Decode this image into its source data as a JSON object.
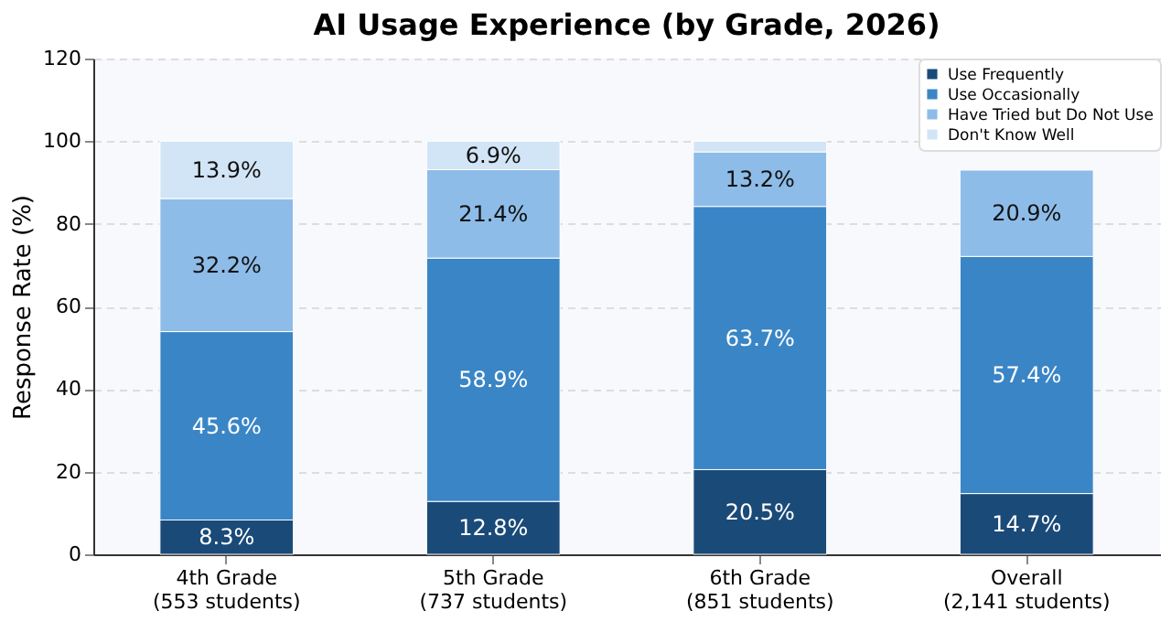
{
  "chart_data": {
    "type": "bar",
    "title": "AI Usage Experience (by Grade, 2026)",
    "ylabel": "Response Rate (%)",
    "categories": [
      "4th Grade\n(553 students)",
      "5th Grade\n(737 students)",
      "6th Grade\n(851 students)",
      "Overall\n(2,141 students)"
    ],
    "stacked": true,
    "ylim": [
      0,
      120
    ],
    "yticks": [
      0,
      20,
      40,
      60,
      80,
      100,
      120
    ],
    "grid": "y",
    "legend": "top right",
    "series": [
      {
        "name": "Use Frequently",
        "color": "#1a4a78",
        "values": [
          8.3,
          12.8,
          20.5,
          14.7
        ],
        "value_labels": [
          "8.3%",
          "12.8%",
          "20.5%",
          "14.7%"
        ]
      },
      {
        "name": "Use Occasionally",
        "color": "#3a85c5",
        "values": [
          45.6,
          58.9,
          63.7,
          57.4
        ],
        "value_labels": [
          "45.6%",
          "58.9%",
          "63.7%",
          "57.4%"
        ]
      },
      {
        "name": "Have Tried but Do Not Use",
        "color": "#8dbce8",
        "values": [
          32.2,
          21.4,
          13.2,
          20.9
        ],
        "value_labels": [
          "32.2%",
          "21.4%",
          "13.2%",
          "20.9%"
        ]
      },
      {
        "name": "Don't Know Well",
        "color": "#d2e5f6",
        "values": [
          13.9,
          6.9,
          2.6,
          null
        ],
        "value_labels": [
          "13.9%",
          "6.9%",
          null,
          null
        ]
      }
    ]
  }
}
